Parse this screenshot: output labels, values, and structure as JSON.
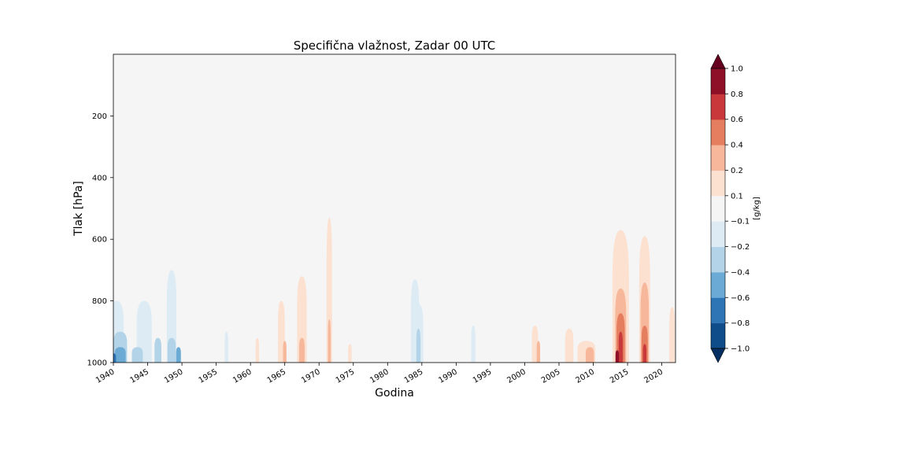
{
  "chart_data": {
    "type": "heatmap",
    "title": "Specifična vlažnost, Zadar 00 UTC",
    "xlabel": "Godina",
    "ylabel": "Tlak [hPa]",
    "xlim": [
      1940,
      2022
    ],
    "ylim": [
      1000,
      0
    ],
    "x_ticks": [
      1940,
      1945,
      1950,
      1955,
      1960,
      1965,
      1970,
      1975,
      1980,
      1985,
      1990,
      1995,
      2000,
      2005,
      2010,
      2015,
      2020
    ],
    "y_ticks": [
      200,
      400,
      600,
      800,
      1000
    ],
    "colorbar": {
      "label": "[g/kg]",
      "levels": [
        "−1.0",
        "−0.8",
        "−0.6",
        "−0.4",
        "−0.2",
        "−0.1",
        "0.1",
        "0.2",
        "0.4",
        "0.6",
        "0.8",
        "1.0"
      ],
      "colors": [
        "#0f4c8a",
        "#2e75b6",
        "#6aaad4",
        "#b3d4e8",
        "#dcebf4",
        "#f5f5f5",
        "#fce0d0",
        "#f6b79b",
        "#e57d5f",
        "#c9383a",
        "#8e1028"
      ],
      "extend": "both",
      "extend_colors": [
        "#053061",
        "#67001f"
      ]
    },
    "background_color": "#f5f5f5",
    "anomalies": [
      {
        "x": 1940,
        "top": 640,
        "level": -0.1,
        "w": 2.5
      },
      {
        "x": 1942,
        "top": 590,
        "level": -0.1,
        "w": 2.5
      },
      {
        "x": 1940.5,
        "top": 800,
        "level": -0.2,
        "w": 2.0
      },
      {
        "x": 1941,
        "top": 900,
        "level": -0.4,
        "w": 2.0
      },
      {
        "x": 1941,
        "top": 950,
        "level": -0.6,
        "w": 1.6
      },
      {
        "x": 1940,
        "top": 970,
        "level": -0.8,
        "w": 0.8
      },
      {
        "x": 1944.5,
        "top": 550,
        "level": -0.1,
        "w": 1.5
      },
      {
        "x": 1944.5,
        "top": 800,
        "level": -0.2,
        "w": 2.2
      },
      {
        "x": 1943.5,
        "top": 950,
        "level": -0.4,
        "w": 1.6
      },
      {
        "x": 1946.5,
        "top": 920,
        "level": -0.4,
        "w": 1.0
      },
      {
        "x": 1948.5,
        "top": 580,
        "level": -0.1,
        "w": 1.6
      },
      {
        "x": 1948.5,
        "top": 700,
        "level": -0.2,
        "w": 1.4
      },
      {
        "x": 1948.5,
        "top": 920,
        "level": -0.4,
        "w": 1.2
      },
      {
        "x": 1949.5,
        "top": 950,
        "level": -0.6,
        "w": 0.7
      },
      {
        "x": 1950.5,
        "top": 900,
        "level": 0.1,
        "w": 0.6
      },
      {
        "x": 1951,
        "top": 760,
        "level": 0.1,
        "w": 0.6
      },
      {
        "x": 1952,
        "top": 600,
        "level": -0.1,
        "w": 0.4
      },
      {
        "x": 1954,
        "top": 900,
        "level": -0.1,
        "w": 0.6
      },
      {
        "x": 1955,
        "top": 920,
        "level": -0.1,
        "w": 0.6
      },
      {
        "x": 1956.5,
        "top": 550,
        "level": -0.1,
        "w": 0.8
      },
      {
        "x": 1956.5,
        "top": 900,
        "level": -0.2,
        "w": 0.5
      },
      {
        "x": 1957.5,
        "top": 880,
        "level": 0.1,
        "w": 0.6
      },
      {
        "x": 1960,
        "top": 890,
        "level": -0.1,
        "w": 0.5
      },
      {
        "x": 1961,
        "top": 760,
        "level": 0.1,
        "w": 0.8
      },
      {
        "x": 1961,
        "top": 920,
        "level": 0.2,
        "w": 0.5
      },
      {
        "x": 1964.5,
        "top": 600,
        "level": 0.1,
        "w": 1.0
      },
      {
        "x": 1964.5,
        "top": 800,
        "level": 0.2,
        "w": 1.0
      },
      {
        "x": 1965,
        "top": 930,
        "level": 0.4,
        "w": 0.5
      },
      {
        "x": 1966.5,
        "top": 780,
        "level": 0.1,
        "w": 0.8
      },
      {
        "x": 1967.5,
        "top": 600,
        "level": 0.1,
        "w": 1.2
      },
      {
        "x": 1967.5,
        "top": 720,
        "level": 0.2,
        "w": 1.4
      },
      {
        "x": 1967.5,
        "top": 920,
        "level": 0.4,
        "w": 0.8
      },
      {
        "x": 1971,
        "top": 590,
        "level": 0.1,
        "w": 2.5
      },
      {
        "x": 1971.5,
        "top": 460,
        "level": 0.1,
        "w": 1.5
      },
      {
        "x": 1971.5,
        "top": 530,
        "level": 0.2,
        "w": 0.8
      },
      {
        "x": 1971.5,
        "top": 860,
        "level": 0.4,
        "w": 0.4
      },
      {
        "x": 1973,
        "top": 900,
        "level": 0.1,
        "w": 0.7
      },
      {
        "x": 1974.5,
        "top": 940,
        "level": 0.2,
        "w": 0.5
      },
      {
        "x": 1976.5,
        "top": 760,
        "level": -0.1,
        "w": 0.8
      },
      {
        "x": 1977.5,
        "top": 800,
        "level": -0.1,
        "w": 0.7
      },
      {
        "x": 1978.5,
        "top": 900,
        "level": -0.1,
        "w": 0.8
      },
      {
        "x": 1979,
        "top": 700,
        "level": -0.1,
        "w": 0.6
      },
      {
        "x": 1980.5,
        "top": 720,
        "level": -0.1,
        "w": 1.0
      },
      {
        "x": 1981,
        "top": 900,
        "level": -0.1,
        "w": 0.8
      },
      {
        "x": 1982,
        "top": 910,
        "level": 0.1,
        "w": 0.8
      },
      {
        "x": 1984,
        "top": 640,
        "level": -0.1,
        "w": 2.4
      },
      {
        "x": 1984,
        "top": 730,
        "level": -0.2,
        "w": 1.2
      },
      {
        "x": 1984.5,
        "top": 810,
        "level": -0.2,
        "w": 1.4
      },
      {
        "x": 1984.5,
        "top": 890,
        "level": -0.4,
        "w": 0.6
      },
      {
        "x": 1990,
        "top": 770,
        "level": -0.1,
        "w": 0.8
      },
      {
        "x": 1992.5,
        "top": 800,
        "level": -0.1,
        "w": 1.2
      },
      {
        "x": 1992.5,
        "top": 880,
        "level": -0.2,
        "w": 0.6
      },
      {
        "x": 1993.5,
        "top": 750,
        "level": -0.1,
        "w": 0.7
      },
      {
        "x": 1994.5,
        "top": 880,
        "level": 0.1,
        "w": 0.4
      },
      {
        "x": 1995,
        "top": 760,
        "level": -0.1,
        "w": 0.6
      },
      {
        "x": 1999,
        "top": 950,
        "level": 0.1,
        "w": 1.0
      },
      {
        "x": 2000.5,
        "top": 870,
        "level": 0.1,
        "w": 1.2
      },
      {
        "x": 2001.5,
        "top": 640,
        "level": 0.1,
        "w": 1.4
      },
      {
        "x": 2001.5,
        "top": 880,
        "level": 0.2,
        "w": 0.9
      },
      {
        "x": 2002,
        "top": 930,
        "level": 0.4,
        "w": 0.5
      },
      {
        "x": 2004.5,
        "top": 880,
        "level": 0.1,
        "w": 1.4
      },
      {
        "x": 2006,
        "top": 670,
        "level": 0.1,
        "w": 0.8
      },
      {
        "x": 2006.5,
        "top": 890,
        "level": 0.2,
        "w": 1.2
      },
      {
        "x": 2010,
        "top": 600,
        "level": 0.1,
        "w": 3.2
      },
      {
        "x": 2009,
        "top": 930,
        "level": 0.2,
        "w": 2.6
      },
      {
        "x": 2009.5,
        "top": 950,
        "level": 0.4,
        "w": 1.2
      },
      {
        "x": 2013.5,
        "top": 520,
        "level": 0.1,
        "w": 4.0
      },
      {
        "x": 2014,
        "top": 570,
        "level": 0.2,
        "w": 2.4
      },
      {
        "x": 2014,
        "top": 760,
        "level": 0.4,
        "w": 1.6
      },
      {
        "x": 2014,
        "top": 840,
        "level": 0.6,
        "w": 1.2
      },
      {
        "x": 2014,
        "top": 900,
        "level": 0.8,
        "w": 0.6
      },
      {
        "x": 2013.5,
        "top": 960,
        "level": 1.0,
        "w": 0.5
      },
      {
        "x": 2016.5,
        "top": 830,
        "level": 0.1,
        "w": 1.2
      },
      {
        "x": 2017.5,
        "top": 510,
        "level": 0.1,
        "w": 3.0
      },
      {
        "x": 2017.5,
        "top": 590,
        "level": 0.2,
        "w": 1.6
      },
      {
        "x": 2017.5,
        "top": 740,
        "level": 0.4,
        "w": 1.2
      },
      {
        "x": 2017.5,
        "top": 880,
        "level": 0.6,
        "w": 0.9
      },
      {
        "x": 2017.5,
        "top": 940,
        "level": 0.8,
        "w": 0.5
      },
      {
        "x": 2021.5,
        "top": 600,
        "level": 0.1,
        "w": 2.5
      },
      {
        "x": 2021.5,
        "top": 820,
        "level": 0.2,
        "w": 0.8
      }
    ]
  }
}
